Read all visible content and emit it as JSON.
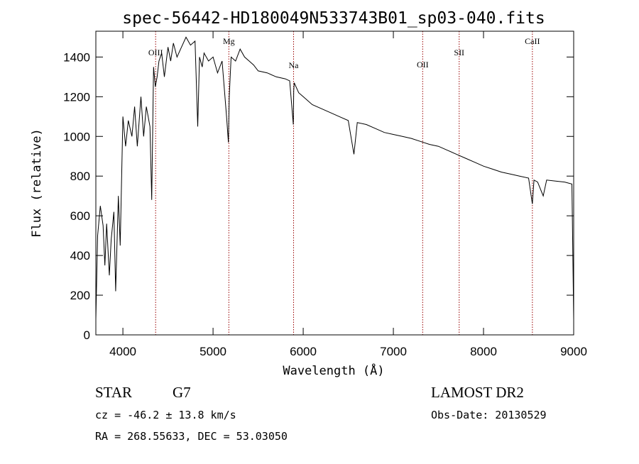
{
  "chart_data": {
    "type": "line",
    "title": "spec-56442-HD180049N533743B01_sp03-040.fits",
    "xlabel": "Wavelength (Å)",
    "ylabel": "Flux (relative)",
    "xlim": [
      3700,
      9000
    ],
    "ylim": [
      0,
      1530
    ],
    "xticks": [
      4000,
      5000,
      6000,
      7000,
      8000,
      9000
    ],
    "yticks": [
      0,
      200,
      400,
      600,
      800,
      1000,
      1200,
      1400
    ],
    "line_color": "#000000",
    "marker_color": "#990000",
    "grid": false,
    "series": [
      {
        "x": [
          3700,
          3720,
          3750,
          3780,
          3800,
          3820,
          3850,
          3870,
          3900,
          3920,
          3950,
          3970,
          4000,
          4030,
          4060,
          4100,
          4130,
          4160,
          4200,
          4230,
          4260,
          4300,
          4320,
          4340,
          4360,
          4380,
          4400,
          4430,
          4460,
          4500,
          4530,
          4560,
          4600,
          4650,
          4700,
          4750,
          4800,
          4830,
          4850,
          4880,
          4900,
          4950,
          5000,
          5050,
          5100,
          5150,
          5170,
          5180,
          5200,
          5250,
          5300,
          5350,
          5400,
          5450,
          5500,
          5600,
          5700,
          5800,
          5850,
          5890,
          5895,
          5900,
          5950,
          6000,
          6100,
          6200,
          6300,
          6400,
          6500,
          6563,
          6600,
          6700,
          6800,
          6900,
          7000,
          7100,
          7200,
          7300,
          7400,
          7500,
          7600,
          7700,
          7800,
          7900,
          8000,
          8100,
          8200,
          8300,
          8400,
          8500,
          8542,
          8560,
          8600,
          8662,
          8700,
          8800,
          8900,
          8980,
          9000
        ],
        "y": [
          80,
          500,
          650,
          550,
          350,
          560,
          300,
          480,
          620,
          220,
          700,
          450,
          1100,
          950,
          1080,
          1000,
          1150,
          950,
          1200,
          1000,
          1150,
          1050,
          680,
          1350,
          1250,
          1300,
          1380,
          1420,
          1300,
          1450,
          1380,
          1470,
          1400,
          1450,
          1500,
          1460,
          1480,
          1050,
          1400,
          1350,
          1420,
          1380,
          1400,
          1320,
          1380,
          1100,
          970,
          1200,
          1400,
          1380,
          1440,
          1400,
          1380,
          1360,
          1330,
          1320,
          1300,
          1290,
          1280,
          1060,
          1230,
          1270,
          1220,
          1200,
          1160,
          1140,
          1120,
          1100,
          1080,
          910,
          1070,
          1060,
          1040,
          1020,
          1010,
          1000,
          990,
          975,
          960,
          950,
          930,
          910,
          890,
          870,
          850,
          835,
          820,
          810,
          800,
          790,
          660,
          780,
          770,
          700,
          780,
          775,
          770,
          760,
          80
        ]
      }
    ],
    "markers": [
      {
        "label": "OIII",
        "x": 4363
      },
      {
        "label": "Mg",
        "x": 5175
      },
      {
        "label": "Na",
        "x": 5893
      },
      {
        "label": "OII",
        "x": 7325
      },
      {
        "label": "SII",
        "x": 7730
      },
      {
        "label": "CaII",
        "x": 8542
      }
    ]
  },
  "info": {
    "object_type": "STAR",
    "subclass": "G7",
    "survey": "LAMOST DR2",
    "cz": "cz = -46.2 ± 13.8 km/s",
    "obs_date": "Obs-Date: 20130529",
    "coords": "RA = 268.55633, DEC =  53.03050"
  }
}
